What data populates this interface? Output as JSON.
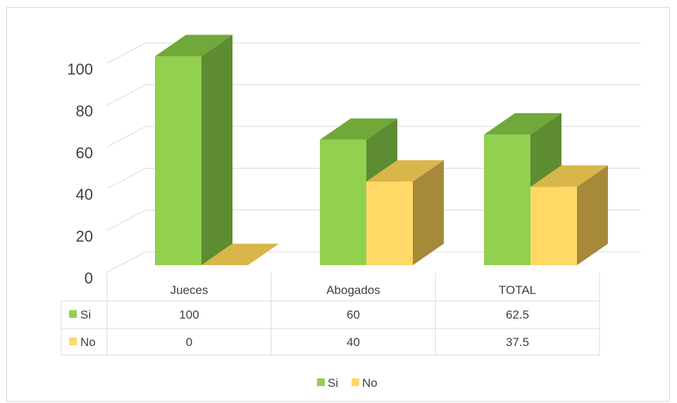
{
  "chart_data": {
    "type": "bar",
    "style": "3d-clustered-column-with-data-table",
    "categories": [
      "Jueces",
      "Abogados",
      "TOTAL"
    ],
    "series": [
      {
        "name": "Si",
        "values": [
          100,
          60,
          62.5
        ],
        "color": "#92D050",
        "color_top": "#70A83A",
        "color_side": "#5E8C30"
      },
      {
        "name": "No",
        "values": [
          0,
          40,
          37.5
        ],
        "color": "#FFD966",
        "color_top": "#D9B64A",
        "color_side": "#A68A3A"
      }
    ],
    "table_values": [
      [
        "100",
        "60",
        "62.5"
      ],
      [
        "0",
        "40",
        "37.5"
      ]
    ],
    "y_ticks": [
      "0",
      "20",
      "40",
      "60",
      "80",
      "100"
    ],
    "ylim": [
      0,
      100
    ],
    "grid": true,
    "legend": "bottom",
    "data_table": true,
    "title": "",
    "xlabel": "",
    "ylabel": ""
  }
}
